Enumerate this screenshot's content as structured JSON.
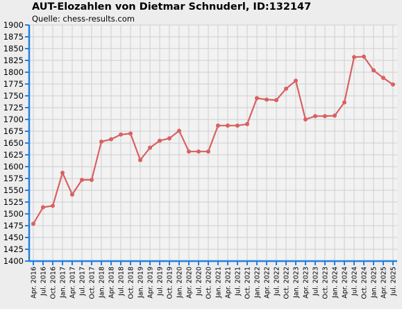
{
  "chart_data": {
    "type": "line",
    "title": "AUT-Elozahlen von Dietmar Schnuderl, ID:132147",
    "subtitle": "Quelle: chess-results.com",
    "xlabel": "",
    "ylabel": "",
    "ylim": [
      1400,
      1900
    ],
    "ytick_step": 25,
    "grid": true,
    "line_color": "#d96060",
    "axis_color": "#2080e0",
    "categories": [
      "Apr. 2016",
      "Jul. 2016",
      "Oct. 2016",
      "Jan. 2017",
      "Apr. 2017",
      "Jul. 2017",
      "Oct. 2017",
      "Jan. 2018",
      "Apr. 2018",
      "Jul. 2018",
      "Oct. 2018",
      "Jan. 2019",
      "Apr. 2019",
      "Jul. 2019",
      "Oct. 2019",
      "Jan. 2020",
      "Apr. 2020",
      "Jul. 2020",
      "Oct. 2020",
      "Jan. 2021",
      "Apr. 2021",
      "Jul. 2021",
      "Oct. 2021",
      "Jan. 2022",
      "Apr. 2022",
      "Jul. 2022",
      "Oct. 2022",
      "Jan. 2023",
      "Apr. 2023",
      "Jul. 2023",
      "Oct. 2023",
      "Jan. 2024",
      "Apr. 2024",
      "Jul. 2024",
      "Oct. 2024",
      "Jan. 2025",
      "Apr. 2025",
      "Jul. 2025"
    ],
    "series": [
      {
        "values": [
          1479,
          1514,
          1517,
          1587,
          1541,
          1572,
          1572,
          1653,
          1658,
          1668,
          1670,
          1614,
          1640,
          1655,
          1660,
          1676,
          1632,
          1632,
          1632,
          1687,
          1687,
          1687,
          1690,
          1745,
          1742,
          1741,
          1765,
          1782,
          1700,
          1707,
          1707,
          1708,
          1736,
          1832,
          1833,
          1804,
          1788,
          1774
        ]
      }
    ]
  }
}
